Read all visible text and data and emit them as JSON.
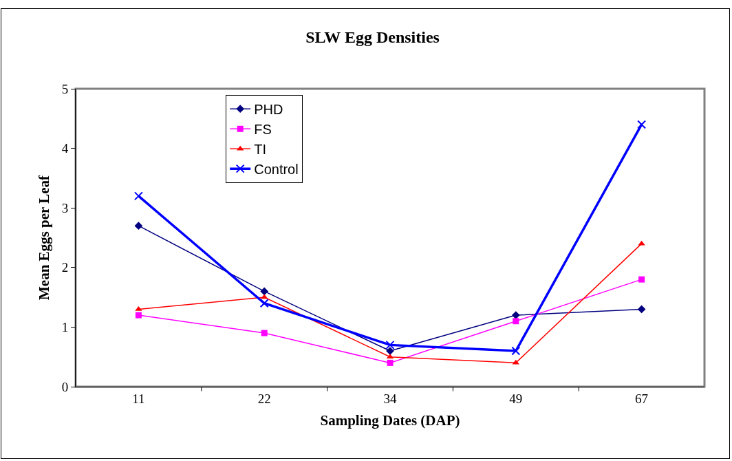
{
  "chart_data": {
    "type": "line",
    "title": "SLW Egg Densities",
    "xlabel": "Sampling Dates (DAP)",
    "ylabel": "Mean Eggs per Leaf",
    "categories": [
      "11",
      "22",
      "34",
      "49",
      "67"
    ],
    "series": [
      {
        "name": "PHD",
        "color": "#000080",
        "marker": "diamond",
        "values": [
          2.7,
          1.6,
          0.6,
          1.2,
          1.3
        ]
      },
      {
        "name": "FS",
        "color": "#ff00ff",
        "marker": "square",
        "values": [
          1.2,
          0.9,
          0.4,
          1.1,
          1.8
        ]
      },
      {
        "name": "TI",
        "color": "#ff0000",
        "marker": "triangle",
        "values": [
          1.3,
          1.5,
          0.5,
          0.4,
          2.4
        ]
      },
      {
        "name": "Control",
        "color": "#0000ff",
        "marker": "cross",
        "values": [
          3.2,
          1.4,
          0.7,
          0.6,
          4.4
        ]
      }
    ],
    "ylim": [
      0,
      5
    ],
    "yticks": [
      0,
      1,
      2,
      3,
      4,
      5
    ],
    "grid": false,
    "legend": "top",
    "line_style": "solid"
  }
}
